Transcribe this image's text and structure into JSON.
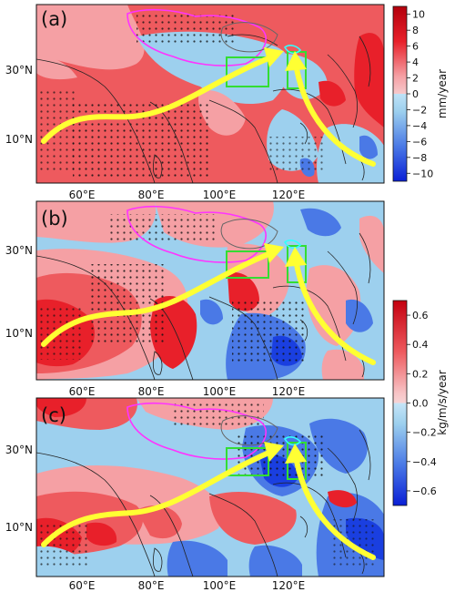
{
  "panels": [
    {
      "label": "(a)",
      "lat_ticks": [
        "30°N",
        "10°N"
      ],
      "lon_ticks": [
        "60°E",
        "80°E",
        "100°E",
        "120°E"
      ],
      "dominant": "positive"
    },
    {
      "label": "(b)",
      "lat_ticks": [
        "30°N",
        "10°N"
      ],
      "lon_ticks": [
        "60°E",
        "80°E",
        "100°E",
        "120°E"
      ],
      "dominant": "mixed"
    },
    {
      "label": "(c)",
      "lat_ticks": [
        "30°N",
        "10°N"
      ],
      "lon_ticks": [
        "60°E",
        "80°E",
        "100°E",
        "120°E"
      ],
      "dominant": "mixed"
    }
  ],
  "colorbar_top": {
    "unit": "mm/year",
    "ticks": [
      "10",
      "8",
      "6",
      "4",
      "2",
      "0",
      "−2",
      "−4",
      "−6",
      "−8",
      "−10"
    ]
  },
  "colorbar_bottom": {
    "unit": "kg/m/s/year",
    "ticks": [
      "0.6",
      "0.4",
      "0.2",
      "0.0",
      "−0.2",
      "−0.4",
      "−0.6"
    ]
  },
  "colors": {
    "strong_red": "#e8202a",
    "red": "#ee5a5e",
    "light_red": "#f5a0a4",
    "light_blue": "#9dd0ee",
    "blue": "#4a79e6",
    "strong_blue": "#1a3fe0",
    "arrow": "#ffff33",
    "box": "#33dd33",
    "plateau": "#ff33ff",
    "highlight": "#33ffff"
  }
}
